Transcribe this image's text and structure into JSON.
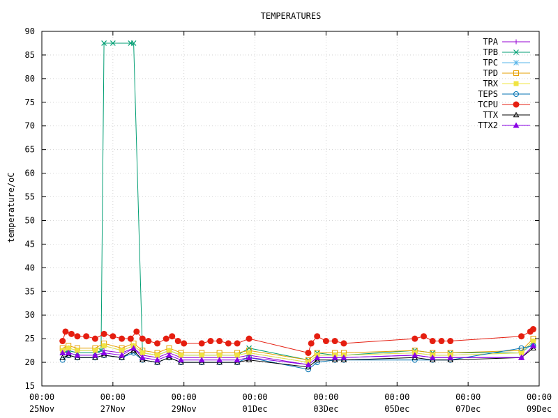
{
  "chart_data": {
    "type": "line",
    "title": "TEMPERATURES",
    "ylabel": "temperature/oC",
    "xlabel": "",
    "ylim": [
      15,
      90
    ],
    "yticks": [
      15,
      20,
      25,
      30,
      35,
      40,
      45,
      50,
      55,
      60,
      65,
      70,
      75,
      80,
      85,
      90
    ],
    "xlim": [
      "2023-11-25 00:00",
      "2023-12-09 00:00"
    ],
    "xticks": [
      {
        "x": "2023-11-25 00:00",
        "time": "00:00",
        "date": "25Nov"
      },
      {
        "x": "2023-11-27 00:00",
        "time": "00:00",
        "date": "27Nov"
      },
      {
        "x": "2023-11-29 00:00",
        "time": "00:00",
        "date": "29Nov"
      },
      {
        "x": "2023-12-01 00:00",
        "time": "00:00",
        "date": "01Dec"
      },
      {
        "x": "2023-12-03 00:00",
        "time": "00:00",
        "date": "03Dec"
      },
      {
        "x": "2023-12-05 00:00",
        "time": "00:00",
        "date": "05Dec"
      },
      {
        "x": "2023-12-07 00:00",
        "time": "00:00",
        "date": "07Dec"
      },
      {
        "x": "2023-12-09 00:00",
        "time": "00:00",
        "date": "09Dec"
      }
    ],
    "grid": true,
    "legend": "top-right",
    "series": [
      {
        "name": "TPA",
        "color": "#9400d3",
        "marker": "plus",
        "values": [
          [
            "2023-11-25 14:00",
            22.0
          ],
          [
            "2023-11-25 18:00",
            22.5
          ],
          [
            "2023-11-26 00:00",
            22.0
          ],
          [
            "2023-11-26 12:00",
            22.0
          ],
          [
            "2023-11-26 18:00",
            22.5
          ],
          [
            "2023-11-27 06:00",
            22.0
          ],
          [
            "2023-11-27 14:00",
            23.0
          ],
          [
            "2023-11-27 20:00",
            21.5
          ],
          [
            "2023-11-28 06:00",
            21.0
          ],
          [
            "2023-11-28 14:00",
            22.0
          ],
          [
            "2023-11-28 22:00",
            21.0
          ],
          [
            "2023-11-29 12:00",
            21.0
          ],
          [
            "2023-11-30 00:00",
            21.0
          ],
          [
            "2023-11-30 12:00",
            21.0
          ],
          [
            "2023-11-30 20:00",
            21.5
          ],
          [
            "2023-12-02 12:00",
            19.5
          ],
          [
            "2023-12-02 18:00",
            21.0
          ],
          [
            "2023-12-03 06:00",
            21.0
          ],
          [
            "2023-12-03 12:00",
            21.0
          ],
          [
            "2023-12-05 12:00",
            21.5
          ],
          [
            "2023-12-06 00:00",
            21.0
          ],
          [
            "2023-12-06 12:00",
            21.0
          ],
          [
            "2023-12-08 12:00",
            21.0
          ],
          [
            "2023-12-08 20:00",
            23.5
          ]
        ]
      },
      {
        "name": "TPB",
        "color": "#009e73",
        "marker": "cross",
        "values": [
          [
            "2023-11-25 14:00",
            22.0
          ],
          [
            "2023-11-25 18:00",
            22.5
          ],
          [
            "2023-11-26 00:00",
            22.0
          ],
          [
            "2023-11-26 12:00",
            22.0
          ],
          [
            "2023-11-26 16:00",
            22.5
          ],
          [
            "2023-11-26 18:00",
            87.5
          ],
          [
            "2023-11-27 00:00",
            87.5
          ],
          [
            "2023-11-27 12:00",
            87.5
          ],
          [
            "2023-11-27 14:00",
            87.5
          ],
          [
            "2023-11-27 20:00",
            22.0
          ],
          [
            "2023-11-28 06:00",
            21.5
          ],
          [
            "2023-11-28 14:00",
            22.5
          ],
          [
            "2023-11-28 22:00",
            21.5
          ],
          [
            "2023-11-29 12:00",
            21.5
          ],
          [
            "2023-11-30 00:00",
            21.5
          ],
          [
            "2023-11-30 12:00",
            21.5
          ],
          [
            "2023-11-30 20:00",
            23.0
          ],
          [
            "2023-12-02 12:00",
            20.5
          ],
          [
            "2023-12-02 18:00",
            22.0
          ],
          [
            "2023-12-03 06:00",
            21.5
          ],
          [
            "2023-12-03 12:00",
            21.5
          ],
          [
            "2023-12-05 12:00",
            22.5
          ],
          [
            "2023-12-06 00:00",
            22.0
          ],
          [
            "2023-12-06 12:00",
            22.0
          ],
          [
            "2023-12-08 12:00",
            22.0
          ],
          [
            "2023-12-08 20:00",
            24.5
          ]
        ]
      },
      {
        "name": "TPC",
        "color": "#56b4e9",
        "marker": "star",
        "values": [
          [
            "2023-11-25 14:00",
            22.5
          ],
          [
            "2023-11-25 18:00",
            23.0
          ],
          [
            "2023-11-26 00:00",
            22.5
          ],
          [
            "2023-11-26 12:00",
            22.5
          ],
          [
            "2023-11-26 18:00",
            23.5
          ],
          [
            "2023-11-27 06:00",
            22.5
          ],
          [
            "2023-11-27 14:00",
            23.5
          ],
          [
            "2023-11-27 20:00",
            22.0
          ],
          [
            "2023-11-28 06:00",
            21.5
          ],
          [
            "2023-11-28 14:00",
            22.5
          ],
          [
            "2023-11-28 22:00",
            21.5
          ],
          [
            "2023-11-29 12:00",
            21.5
          ],
          [
            "2023-11-30 00:00",
            21.5
          ],
          [
            "2023-11-30 12:00",
            21.5
          ],
          [
            "2023-11-30 20:00",
            22.0
          ],
          [
            "2023-12-02 12:00",
            20.0
          ],
          [
            "2023-12-02 18:00",
            21.5
          ],
          [
            "2023-12-03 06:00",
            21.5
          ],
          [
            "2023-12-03 12:00",
            21.5
          ],
          [
            "2023-12-05 12:00",
            22.0
          ],
          [
            "2023-12-06 00:00",
            21.5
          ],
          [
            "2023-12-06 12:00",
            21.5
          ],
          [
            "2023-12-08 12:00",
            22.0
          ],
          [
            "2023-12-08 20:00",
            24.0
          ]
        ]
      },
      {
        "name": "TPD",
        "color": "#e69f00",
        "marker": "square",
        "values": [
          [
            "2023-11-25 14:00",
            23.0
          ],
          [
            "2023-11-25 18:00",
            23.5
          ],
          [
            "2023-11-26 00:00",
            23.0
          ],
          [
            "2023-11-26 12:00",
            23.0
          ],
          [
            "2023-11-26 18:00",
            24.0
          ],
          [
            "2023-11-27 06:00",
            23.0
          ],
          [
            "2023-11-27 14:00",
            24.0
          ],
          [
            "2023-11-27 20:00",
            22.5
          ],
          [
            "2023-11-28 06:00",
            22.0
          ],
          [
            "2023-11-28 14:00",
            23.0
          ],
          [
            "2023-11-28 22:00",
            22.0
          ],
          [
            "2023-11-29 12:00",
            22.0
          ],
          [
            "2023-11-30 00:00",
            22.0
          ],
          [
            "2023-11-30 12:00",
            22.0
          ],
          [
            "2023-11-30 20:00",
            22.5
          ],
          [
            "2023-12-02 12:00",
            20.5
          ],
          [
            "2023-12-02 18:00",
            22.0
          ],
          [
            "2023-12-03 06:00",
            22.0
          ],
          [
            "2023-12-03 12:00",
            22.0
          ],
          [
            "2023-12-05 12:00",
            22.5
          ],
          [
            "2023-12-06 00:00",
            22.0
          ],
          [
            "2023-12-06 12:00",
            22.0
          ],
          [
            "2023-12-08 12:00",
            22.5
          ],
          [
            "2023-12-08 20:00",
            25.0
          ]
        ]
      },
      {
        "name": "TRX",
        "color": "#f0e442",
        "marker": "square-filled",
        "values": [
          [
            "2023-11-25 14:00",
            22.5
          ],
          [
            "2023-11-25 18:00",
            23.0
          ],
          [
            "2023-11-26 00:00",
            22.5
          ],
          [
            "2023-11-26 12:00",
            22.5
          ],
          [
            "2023-11-26 18:00",
            23.5
          ],
          [
            "2023-11-27 06:00",
            22.5
          ],
          [
            "2023-11-27 14:00",
            23.5
          ],
          [
            "2023-11-27 20:00",
            22.0
          ],
          [
            "2023-11-28 06:00",
            21.5
          ],
          [
            "2023-11-28 14:00",
            22.5
          ],
          [
            "2023-11-28 22:00",
            21.5
          ],
          [
            "2023-11-29 12:00",
            21.5
          ],
          [
            "2023-11-30 00:00",
            21.5
          ],
          [
            "2023-11-30 12:00",
            21.5
          ],
          [
            "2023-11-30 20:00",
            22.0
          ],
          [
            "2023-12-02 12:00",
            20.0
          ],
          [
            "2023-12-02 18:00",
            21.5
          ],
          [
            "2023-12-03 06:00",
            21.5
          ],
          [
            "2023-12-03 12:00",
            21.5
          ],
          [
            "2023-12-05 12:00",
            22.0
          ],
          [
            "2023-12-06 00:00",
            21.5
          ],
          [
            "2023-12-06 12:00",
            21.5
          ],
          [
            "2023-12-08 12:00",
            22.0
          ],
          [
            "2023-12-08 20:00",
            24.5
          ]
        ]
      },
      {
        "name": "TEPS",
        "color": "#0072b2",
        "marker": "circle",
        "values": [
          [
            "2023-11-25 14:00",
            20.5
          ],
          [
            "2023-11-25 18:00",
            21.5
          ],
          [
            "2023-11-26 00:00",
            21.0
          ],
          [
            "2023-11-26 12:00",
            21.0
          ],
          [
            "2023-11-26 18:00",
            21.5
          ],
          [
            "2023-11-27 06:00",
            21.0
          ],
          [
            "2023-11-27 14:00",
            22.0
          ],
          [
            "2023-11-27 20:00",
            20.5
          ],
          [
            "2023-11-28 06:00",
            20.0
          ],
          [
            "2023-11-28 14:00",
            21.0
          ],
          [
            "2023-11-28 22:00",
            20.0
          ],
          [
            "2023-11-29 12:00",
            20.0
          ],
          [
            "2023-11-30 00:00",
            20.0
          ],
          [
            "2023-11-30 12:00",
            20.0
          ],
          [
            "2023-11-30 20:00",
            21.0
          ],
          [
            "2023-12-02 12:00",
            18.5
          ],
          [
            "2023-12-02 18:00",
            20.0
          ],
          [
            "2023-12-03 06:00",
            20.5
          ],
          [
            "2023-12-03 12:00",
            20.5
          ],
          [
            "2023-12-05 12:00",
            20.5
          ],
          [
            "2023-12-06 00:00",
            20.5
          ],
          [
            "2023-12-06 12:00",
            20.5
          ],
          [
            "2023-12-08 12:00",
            23.0
          ],
          [
            "2023-12-08 20:00",
            23.5
          ]
        ]
      },
      {
        "name": "TCPU",
        "color": "#e51e10",
        "marker": "circle-filled",
        "values": [
          [
            "2023-11-25 14:00",
            24.5
          ],
          [
            "2023-11-25 16:00",
            26.5
          ],
          [
            "2023-11-25 20:00",
            26.0
          ],
          [
            "2023-11-26 00:00",
            25.5
          ],
          [
            "2023-11-26 06:00",
            25.5
          ],
          [
            "2023-11-26 12:00",
            25.0
          ],
          [
            "2023-11-26 18:00",
            26.0
          ],
          [
            "2023-11-27 00:00",
            25.5
          ],
          [
            "2023-11-27 06:00",
            25.0
          ],
          [
            "2023-11-27 12:00",
            25.0
          ],
          [
            "2023-11-27 16:00",
            26.5
          ],
          [
            "2023-11-27 20:00",
            25.0
          ],
          [
            "2023-11-28 00:00",
            24.5
          ],
          [
            "2023-11-28 06:00",
            24.0
          ],
          [
            "2023-11-28 12:00",
            25.0
          ],
          [
            "2023-11-28 16:00",
            25.5
          ],
          [
            "2023-11-28 20:00",
            24.5
          ],
          [
            "2023-11-29 00:00",
            24.0
          ],
          [
            "2023-11-29 12:00",
            24.0
          ],
          [
            "2023-11-29 18:00",
            24.5
          ],
          [
            "2023-11-30 00:00",
            24.5
          ],
          [
            "2023-11-30 06:00",
            24.0
          ],
          [
            "2023-11-30 12:00",
            24.0
          ],
          [
            "2023-11-30 20:00",
            25.0
          ],
          [
            "2023-12-02 12:00",
            22.0
          ],
          [
            "2023-12-02 14:00",
            24.0
          ],
          [
            "2023-12-02 18:00",
            25.5
          ],
          [
            "2023-12-03 00:00",
            24.5
          ],
          [
            "2023-12-03 06:00",
            24.5
          ],
          [
            "2023-12-03 12:00",
            24.0
          ],
          [
            "2023-12-05 12:00",
            25.0
          ],
          [
            "2023-12-05 18:00",
            25.5
          ],
          [
            "2023-12-06 00:00",
            24.5
          ],
          [
            "2023-12-06 06:00",
            24.5
          ],
          [
            "2023-12-06 12:00",
            24.5
          ],
          [
            "2023-12-08 12:00",
            25.5
          ],
          [
            "2023-12-08 18:00",
            26.5
          ],
          [
            "2023-12-08 20:00",
            27.0
          ]
        ]
      },
      {
        "name": "TTX",
        "color": "#000000",
        "marker": "triangle",
        "values": [
          [
            "2023-11-25 14:00",
            21.0
          ],
          [
            "2023-11-25 18:00",
            21.5
          ],
          [
            "2023-11-26 00:00",
            21.0
          ],
          [
            "2023-11-26 12:00",
            21.0
          ],
          [
            "2023-11-26 18:00",
            21.5
          ],
          [
            "2023-11-27 06:00",
            21.0
          ],
          [
            "2023-11-27 14:00",
            22.5
          ],
          [
            "2023-11-27 20:00",
            20.5
          ],
          [
            "2023-11-28 06:00",
            20.0
          ],
          [
            "2023-11-28 14:00",
            21.0
          ],
          [
            "2023-11-28 22:00",
            20.0
          ],
          [
            "2023-11-29 12:00",
            20.0
          ],
          [
            "2023-11-30 00:00",
            20.0
          ],
          [
            "2023-11-30 12:00",
            20.0
          ],
          [
            "2023-11-30 20:00",
            20.5
          ],
          [
            "2023-12-02 12:00",
            19.0
          ],
          [
            "2023-12-02 18:00",
            20.5
          ],
          [
            "2023-12-03 06:00",
            20.5
          ],
          [
            "2023-12-03 12:00",
            20.5
          ],
          [
            "2023-12-05 12:00",
            21.0
          ],
          [
            "2023-12-06 00:00",
            20.5
          ],
          [
            "2023-12-06 12:00",
            20.5
          ],
          [
            "2023-12-08 12:00",
            21.0
          ],
          [
            "2023-12-08 20:00",
            23.0
          ]
        ]
      },
      {
        "name": "TTX2",
        "color": "#8a00e6",
        "marker": "triangle-filled",
        "values": [
          [
            "2023-11-25 14:00",
            22.0
          ],
          [
            "2023-11-25 18:00",
            22.0
          ],
          [
            "2023-11-26 00:00",
            21.5
          ],
          [
            "2023-11-26 12:00",
            21.5
          ],
          [
            "2023-11-26 18:00",
            22.0
          ],
          [
            "2023-11-27 06:00",
            21.5
          ],
          [
            "2023-11-27 14:00",
            23.0
          ],
          [
            "2023-11-27 20:00",
            21.0
          ],
          [
            "2023-11-28 06:00",
            20.5
          ],
          [
            "2023-11-28 14:00",
            21.5
          ],
          [
            "2023-11-28 22:00",
            20.5
          ],
          [
            "2023-11-29 12:00",
            20.5
          ],
          [
            "2023-11-30 00:00",
            20.5
          ],
          [
            "2023-11-30 12:00",
            20.5
          ],
          [
            "2023-11-30 20:00",
            21.0
          ],
          [
            "2023-12-02 12:00",
            19.5
          ],
          [
            "2023-12-02 18:00",
            21.0
          ],
          [
            "2023-12-03 06:00",
            21.0
          ],
          [
            "2023-12-03 12:00",
            21.0
          ],
          [
            "2023-12-05 12:00",
            21.5
          ],
          [
            "2023-12-06 00:00",
            21.0
          ],
          [
            "2023-12-06 12:00",
            21.0
          ],
          [
            "2023-12-08 12:00",
            21.0
          ],
          [
            "2023-12-08 20:00",
            23.5
          ]
        ]
      }
    ]
  }
}
